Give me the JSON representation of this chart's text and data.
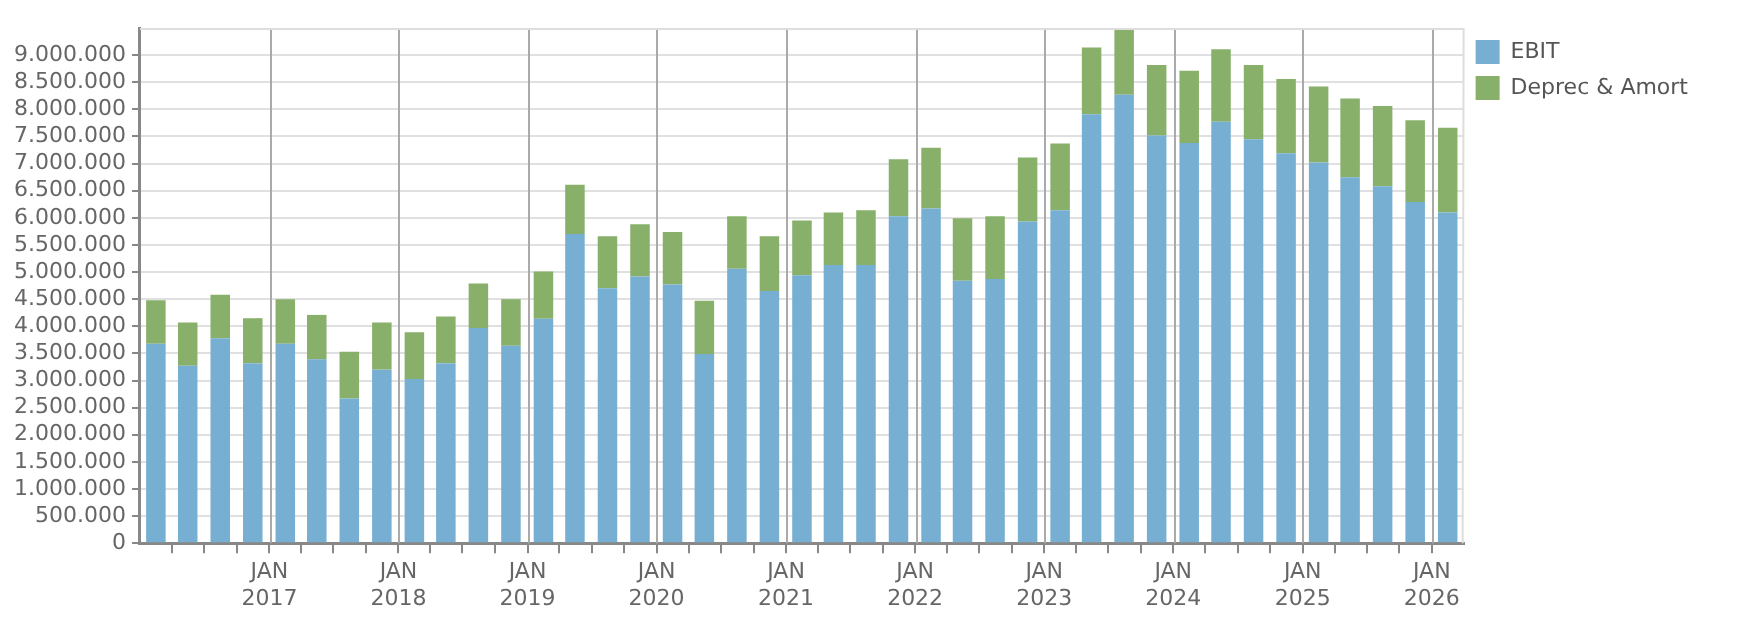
{
  "chart_data": {
    "type": "bar",
    "stacked": true,
    "grid": true,
    "legend": "top right",
    "x": [
      "2016-02-15",
      "2016-05-15",
      "2016-08-15",
      "2016-11-15",
      "2017-02-15",
      "2017-05-15",
      "2017-08-15",
      "2017-11-15",
      "2018-02-15",
      "2018-05-15",
      "2018-08-15",
      "2018-11-15",
      "2019-02-15",
      "2019-05-15",
      "2019-08-15",
      "2019-11-15",
      "2020-02-15",
      "2020-05-15",
      "2020-08-15",
      "2020-11-15",
      "2021-02-15",
      "2021-05-15",
      "2021-08-15",
      "2021-11-15",
      "2022-02-15",
      "2022-05-15",
      "2022-08-15",
      "2022-11-15",
      "2023-02-15",
      "2023-05-15",
      "2023-08-15",
      "2023-11-15",
      "2024-02-15",
      "2024-05-15",
      "2024-08-15",
      "2024-11-15",
      "2025-02-15",
      "2025-05-15",
      "2025-08-15",
      "2025-11-15",
      "2026-02-15"
    ],
    "xlim": [
      "2016-01",
      "2026-04"
    ],
    "xticks": [
      {
        "value": "2016-04",
        "label": null
      },
      {
        "value": "2016-07",
        "label": null
      },
      {
        "value": "2016-10",
        "label": null
      },
      {
        "value": "2017-01",
        "label": "JAN 2017"
      },
      {
        "value": "2017-04",
        "label": null
      },
      {
        "value": "2017-07",
        "label": null
      },
      {
        "value": "2017-10",
        "label": null
      },
      {
        "value": "2018-01",
        "label": "JAN 2018"
      },
      {
        "value": "2018-04",
        "label": null
      },
      {
        "value": "2018-07",
        "label": null
      },
      {
        "value": "2018-10",
        "label": null
      },
      {
        "value": "2019-01",
        "label": "JAN 2019"
      },
      {
        "value": "2019-04",
        "label": null
      },
      {
        "value": "2019-07",
        "label": null
      },
      {
        "value": "2019-10",
        "label": null
      },
      {
        "value": "2020-01",
        "label": "JAN 2020"
      },
      {
        "value": "2020-04",
        "label": null
      },
      {
        "value": "2020-07",
        "label": null
      },
      {
        "value": "2020-10",
        "label": null
      },
      {
        "value": "2021-01",
        "label": "JAN 2021"
      },
      {
        "value": "2021-04",
        "label": null
      },
      {
        "value": "2021-07",
        "label": null
      },
      {
        "value": "2021-10",
        "label": null
      },
      {
        "value": "2022-01",
        "label": "JAN 2022"
      },
      {
        "value": "2022-04",
        "label": null
      },
      {
        "value": "2022-07",
        "label": null
      },
      {
        "value": "2022-10",
        "label": null
      },
      {
        "value": "2023-01",
        "label": "JAN 2023"
      },
      {
        "value": "2023-04",
        "label": null
      },
      {
        "value": "2023-07",
        "label": null
      },
      {
        "value": "2023-10",
        "label": null
      },
      {
        "value": "2024-01",
        "label": "JAN 2024"
      },
      {
        "value": "2024-04",
        "label": null
      },
      {
        "value": "2024-07",
        "label": null
      },
      {
        "value": "2024-10",
        "label": null
      },
      {
        "value": "2025-01",
        "label": "JAN 2025"
      },
      {
        "value": "2025-04",
        "label": null
      },
      {
        "value": "2025-07",
        "label": null
      },
      {
        "value": "2025-10",
        "label": null
      },
      {
        "value": "2026-01",
        "label": "JAN 2026"
      }
    ],
    "ylim": [
      0,
      9500000
    ],
    "yticks": [
      {
        "value": 0,
        "label": "0"
      },
      {
        "value": 500000,
        "label": "500.000"
      },
      {
        "value": 1000000,
        "label": "1.000.000"
      },
      {
        "value": 1500000,
        "label": "1.500.000"
      },
      {
        "value": 2000000,
        "label": "2.000.000"
      },
      {
        "value": 2500000,
        "label": "2.500.000"
      },
      {
        "value": 3000000,
        "label": "3.000.000"
      },
      {
        "value": 3500000,
        "label": "3.500.000"
      },
      {
        "value": 4000000,
        "label": "4.000.000"
      },
      {
        "value": 4500000,
        "label": "4.500.000"
      },
      {
        "value": 5000000,
        "label": "5.000.000"
      },
      {
        "value": 5500000,
        "label": "5.500.000"
      },
      {
        "value": 6000000,
        "label": "6.000.000"
      },
      {
        "value": 6500000,
        "label": "6.500.000"
      },
      {
        "value": 7000000,
        "label": "7.000.000"
      },
      {
        "value": 7500000,
        "label": "7.500.000"
      },
      {
        "value": 8000000,
        "label": "8.000.000"
      },
      {
        "value": 8500000,
        "label": "8.500.000"
      },
      {
        "value": 9000000,
        "label": "9.000.000"
      }
    ],
    "series": [
      {
        "name": "EBIT",
        "color": "#77afd2",
        "values": [
          3680000,
          3270000,
          3780000,
          3320000,
          3680000,
          3390000,
          2670000,
          3200000,
          3030000,
          3320000,
          3970000,
          3640000,
          4140000,
          5700000,
          4700000,
          4920000,
          4770000,
          3490000,
          5060000,
          4650000,
          4940000,
          5130000,
          5130000,
          6030000,
          6170000,
          4840000,
          4870000,
          5930000,
          6140000,
          7910000,
          8270000,
          7520000,
          7380000,
          7770000,
          7450000,
          7190000,
          7020000,
          6750000,
          6580000,
          6290000,
          6100000
        ]
      },
      {
        "name": "Deprec & Amort",
        "color": "#88b06a",
        "values": [
          800000,
          800000,
          800000,
          830000,
          820000,
          820000,
          860000,
          870000,
          860000,
          860000,
          820000,
          860000,
          870000,
          910000,
          960000,
          960000,
          970000,
          980000,
          970000,
          1010000,
          1010000,
          970000,
          1010000,
          1050000,
          1120000,
          1150000,
          1160000,
          1180000,
          1230000,
          1230000,
          1200000,
          1300000,
          1330000,
          1340000,
          1370000,
          1370000,
          1400000,
          1450000,
          1480000,
          1510000,
          1560000
        ]
      }
    ]
  }
}
